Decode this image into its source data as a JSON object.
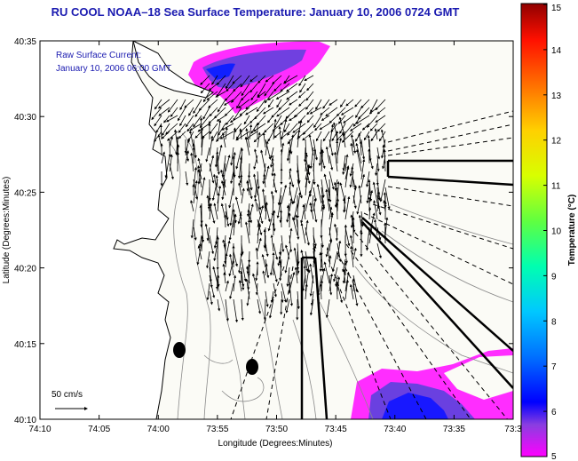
{
  "title": "RU COOL  NOAA–18  Sea Surface Temperature:  January 10, 2006 0724 GMT",
  "inset": {
    "line1": "Raw Surface Current:",
    "line2": "January 10, 2006 06:00 GMT"
  },
  "axes": {
    "xlabel": "Longitude (Degrees:Minutes)",
    "ylabel": "Latitude (Degrees:Minutes)",
    "xticks": [
      "74:10",
      "74:05",
      "74:00",
      "73:55",
      "73:50",
      "73:45",
      "73:40",
      "73:35",
      "73:3"
    ],
    "yticks": [
      "40:35",
      "40:30",
      "40:25",
      "40:20",
      "40:15",
      "40:10"
    ]
  },
  "scale": {
    "label": "50 cm/s"
  },
  "colorbar": {
    "label": "Temperature (°C)",
    "ticks": [
      "15",
      "14",
      "13",
      "12",
      "11",
      "10",
      "9",
      "8",
      "7",
      "6",
      "5"
    ],
    "colors": [
      "#ff00ff",
      "#6a3dd8",
      "#0000ff",
      "#0060ff",
      "#00b0ff",
      "#00ffc0",
      "#60ff40",
      "#d0ff00",
      "#ffd000",
      "#ff6000",
      "#ff0000",
      "#900000"
    ]
  }
}
